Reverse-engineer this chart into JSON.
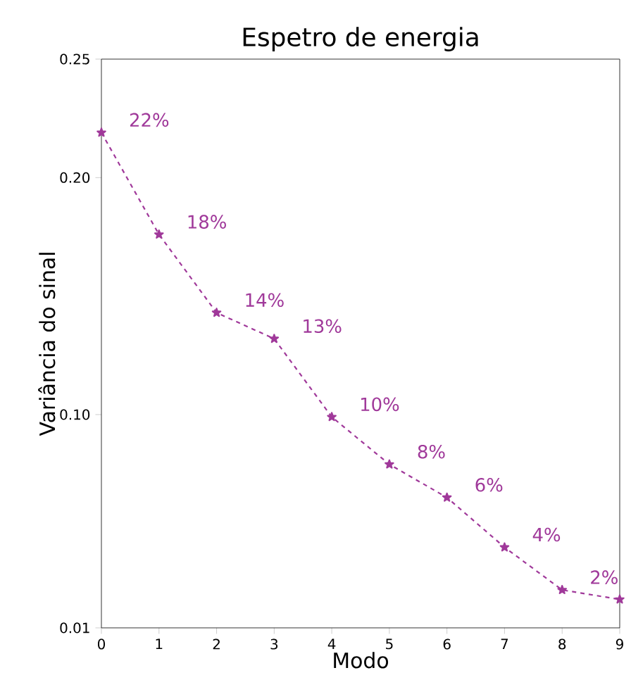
{
  "chart_data": {
    "type": "line",
    "title": "Espetro de energia",
    "xlabel": "Modo",
    "ylabel": "Variância do sinal",
    "x": [
      0,
      1,
      2,
      3,
      4,
      5,
      6,
      7,
      8,
      9
    ],
    "series": [
      {
        "color": "#a0399a",
        "values": [
          0.219,
          0.176,
          0.143,
          0.132,
          0.099,
          0.079,
          0.065,
          0.044,
          0.026,
          0.022
        ]
      }
    ],
    "annotations": [
      {
        "text": "22%",
        "x": 0,
        "y": 0.219
      },
      {
        "text": "18%",
        "x": 1,
        "y": 0.176
      },
      {
        "text": "14%",
        "x": 2,
        "y": 0.143
      },
      {
        "text": "13%",
        "x": 3,
        "y": 0.132
      },
      {
        "text": "10%",
        "x": 4,
        "y": 0.099
      },
      {
        "text": "8%",
        "x": 5,
        "y": 0.079
      },
      {
        "text": "6%",
        "x": 6,
        "y": 0.065
      },
      {
        "text": "4%",
        "x": 7,
        "y": 0.044
      },
      {
        "text": "2%",
        "x": 8,
        "y": 0.026
      }
    ],
    "xlim": [
      0,
      9
    ],
    "xticks": [
      0,
      1,
      2,
      3,
      4,
      5,
      6,
      7,
      8,
      9
    ],
    "ylim": [
      0.01,
      0.25
    ],
    "yticks": [
      {
        "value": 0.01,
        "label": "0.01"
      },
      {
        "value": 0.1,
        "label": "0.10"
      },
      {
        "value": 0.2,
        "label": "0.20"
      },
      {
        "value": 0.25,
        "label": "0.25"
      }
    ],
    "marker": "star",
    "line_style": "dashed",
    "grid": false
  }
}
